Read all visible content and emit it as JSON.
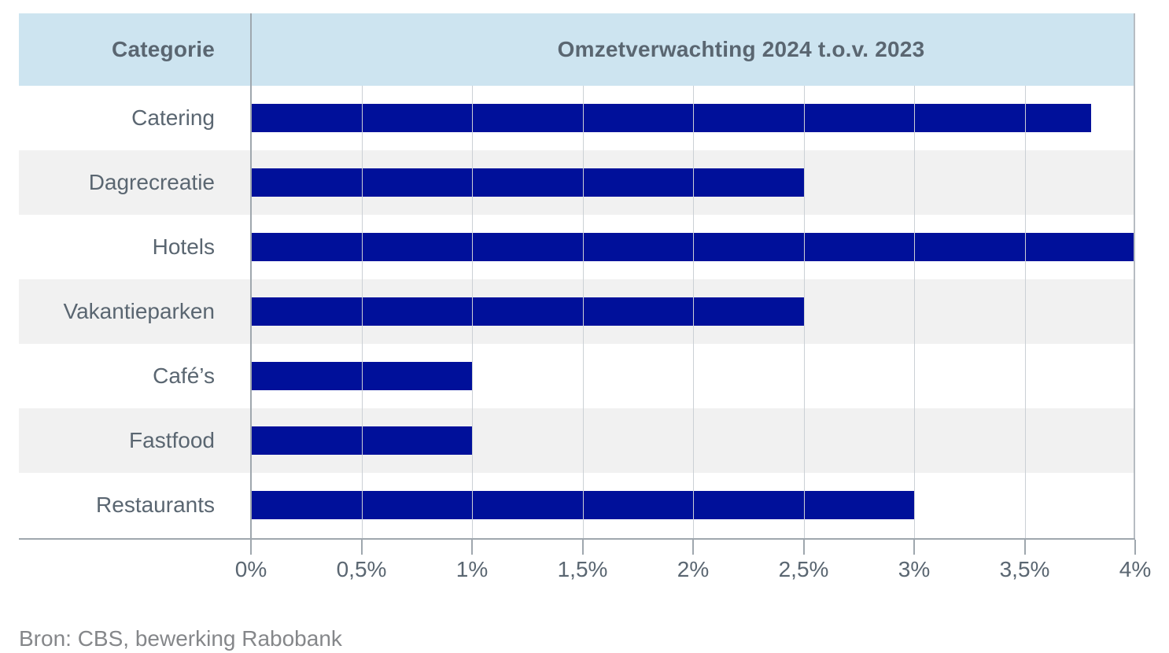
{
  "header": {
    "category_label": "Categorie",
    "value_label": "Omzetverwachting 2024 t.o.v. 2023"
  },
  "source_note": "Bron: CBS, bewerking Rabobank",
  "colors": {
    "header_bg": "#cde4f0",
    "row_alt": "#f1f1f1",
    "bar": "#00109a",
    "text": "#5a6671",
    "source_text": "#85878a",
    "grid": "#cbd0d5",
    "grid_strong": "#b6bcc2",
    "axis": "#9fa7ae"
  },
  "chart_data": {
    "type": "bar",
    "orientation": "horizontal",
    "title": "Omzetverwachting 2024 t.o.v. 2023",
    "xlabel": "",
    "ylabel": "Categorie",
    "categories": [
      "Catering",
      "Dagrecreatie",
      "Hotels",
      "Vakantieparken",
      "Café’s",
      "Fastfood",
      "Restaurants"
    ],
    "values": [
      3.8,
      2.5,
      4.0,
      2.5,
      1.0,
      1.0,
      3.0
    ],
    "value_unit": "%",
    "xlim": [
      0,
      4
    ],
    "x_ticks": [
      0,
      0.5,
      1,
      1.5,
      2,
      2.5,
      3,
      3.5,
      4
    ],
    "x_tick_labels": [
      "0%",
      "0,5%",
      "1%",
      "1,5%",
      "2%",
      "2,5%",
      "3%",
      "3,5%",
      "4%"
    ],
    "grid": true,
    "legend": false,
    "bar_color": "#00109a",
    "row_stripe_indexes": [
      1,
      3,
      5
    ]
  }
}
